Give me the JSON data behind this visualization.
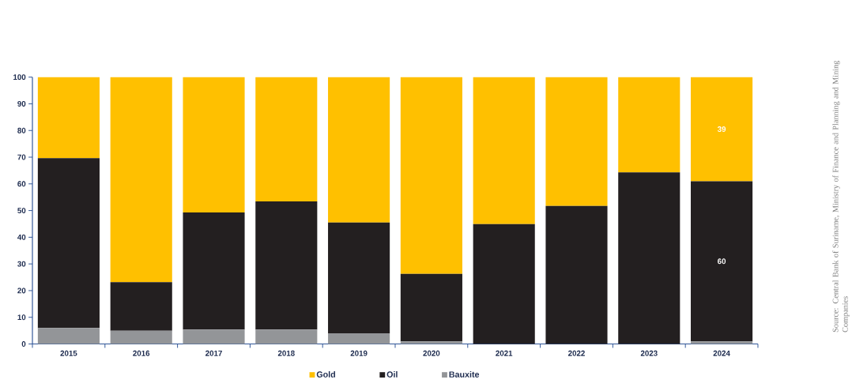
{
  "chart_data": {
    "type": "bar",
    "stacked": true,
    "categories": [
      "2015",
      "2016",
      "2017",
      "2018",
      "2019",
      "2020",
      "2021",
      "2022",
      "2023",
      "2024"
    ],
    "series": [
      {
        "name": "Bauxite",
        "color": "#939598",
        "values": [
          6,
          5,
          5.4,
          5.4,
          4,
          1,
          0,
          0,
          0,
          1
        ],
        "value_labels": [
          null,
          null,
          null,
          null,
          null,
          null,
          null,
          null,
          null,
          null
        ]
      },
      {
        "name": "Oil",
        "color": "#231f20",
        "values": [
          63.6,
          18.2,
          43.9,
          48,
          41.5,
          25.3,
          44.9,
          51.7,
          64.3,
          60
        ],
        "value_labels": [
          null,
          null,
          null,
          null,
          null,
          null,
          null,
          null,
          null,
          "60"
        ]
      },
      {
        "name": "Gold",
        "color": "#ffc000",
        "values": [
          30.4,
          76.8,
          50.7,
          46.6,
          54.5,
          73.7,
          55.1,
          48.3,
          35.7,
          39
        ],
        "value_labels": [
          null,
          null,
          null,
          null,
          null,
          null,
          null,
          null,
          null,
          "39"
        ]
      }
    ],
    "ylim": [
      0,
      100
    ],
    "yticks": [
      0,
      10,
      20,
      30,
      40,
      50,
      60,
      70,
      80,
      90,
      100
    ],
    "legend": "bottom",
    "grid": false,
    "annotations": [
      "Source: Central Bank of Suriname, Ministry of Finance and Planning and Mining Companies"
    ]
  }
}
